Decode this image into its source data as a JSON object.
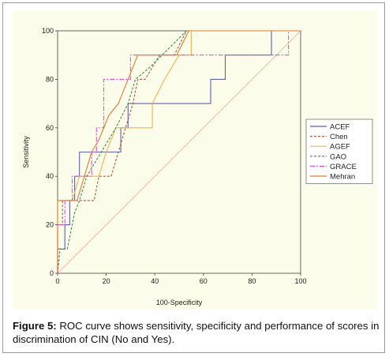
{
  "figure": {
    "caption_label": "Figure 5:",
    "caption_text": " ROC curve shows sensitivity, specificity and performance of scores in discrimination of CIN (No and Yes)."
  },
  "colors": {
    "panel_bg": "#fbfce9",
    "diagonal": "#f4a2a2",
    "axis": "#444444"
  },
  "chart_data": {
    "type": "line",
    "title": "",
    "xlabel": "100-Specificity",
    "ylabel": "Sensitivity",
    "xlim": [
      0,
      100
    ],
    "ylim": [
      0,
      100
    ],
    "xticks": [
      "0",
      "20",
      "40",
      "60",
      "80",
      "100"
    ],
    "yticks": [
      "0",
      "20",
      "40",
      "60",
      "80",
      "100"
    ],
    "grid": false,
    "legend_position": "right",
    "reference_line": {
      "from": [
        0,
        0
      ],
      "to": [
        100,
        100
      ]
    },
    "series": [
      {
        "name": "ACEF",
        "color": "#5f62b0",
        "dash": "solid",
        "points": [
          [
            0,
            0
          ],
          [
            0,
            10
          ],
          [
            3,
            10
          ],
          [
            3,
            20
          ],
          [
            5,
            20
          ],
          [
            5,
            30
          ],
          [
            7,
            30
          ],
          [
            7,
            40
          ],
          [
            9,
            40
          ],
          [
            9,
            50
          ],
          [
            26,
            50
          ],
          [
            26,
            60
          ],
          [
            29,
            60
          ],
          [
            29,
            70
          ],
          [
            63,
            70
          ],
          [
            63,
            80
          ],
          [
            69,
            80
          ],
          [
            69,
            90
          ],
          [
            88,
            90
          ],
          [
            88,
            100
          ],
          [
            100,
            100
          ]
        ]
      },
      {
        "name": "Chen",
        "color": "#a85a3c",
        "dash": "3,2",
        "points": [
          [
            0,
            0
          ],
          [
            0,
            20
          ],
          [
            2,
            20
          ],
          [
            2,
            30
          ],
          [
            7,
            30
          ],
          [
            10,
            30
          ],
          [
            15,
            30
          ],
          [
            17,
            40
          ],
          [
            22,
            40
          ],
          [
            25,
            50
          ],
          [
            28,
            60
          ],
          [
            31,
            70
          ],
          [
            33,
            80
          ],
          [
            36,
            80
          ],
          [
            42,
            90
          ],
          [
            48,
            90
          ],
          [
            53,
            100
          ],
          [
            100,
            100
          ]
        ]
      },
      {
        "name": "AGEF",
        "color": "#f2b24a",
        "dash": "solid",
        "points": [
          [
            0,
            0
          ],
          [
            0,
            30
          ],
          [
            6,
            30
          ],
          [
            9,
            40
          ],
          [
            14,
            40
          ],
          [
            17,
            40
          ],
          [
            20,
            50
          ],
          [
            24,
            60
          ],
          [
            39,
            60
          ],
          [
            39,
            70
          ],
          [
            44,
            80
          ],
          [
            50,
            90
          ],
          [
            55,
            90
          ],
          [
            55,
            100
          ],
          [
            98,
            100
          ],
          [
            100,
            100
          ]
        ]
      },
      {
        "name": "GAO",
        "color": "#3f8a4a",
        "dash": "3,2",
        "points": [
          [
            0,
            0
          ],
          [
            1,
            10
          ],
          [
            4,
            10
          ],
          [
            7,
            25
          ],
          [
            9,
            30
          ],
          [
            12,
            40
          ],
          [
            18,
            50
          ],
          [
            24,
            60
          ],
          [
            29,
            70
          ],
          [
            32,
            80
          ],
          [
            38,
            85
          ],
          [
            43,
            90
          ],
          [
            48,
            95
          ],
          [
            53,
            100
          ],
          [
            100,
            100
          ]
        ]
      },
      {
        "name": "GRACE",
        "color": "#e052e0",
        "dash": "6,2,2,2",
        "points": [
          [
            0,
            0
          ],
          [
            0,
            20
          ],
          [
            3,
            20
          ],
          [
            3,
            30
          ],
          [
            6,
            30
          ],
          [
            6,
            40
          ],
          [
            14,
            40
          ],
          [
            14,
            50
          ],
          [
            16,
            50
          ],
          [
            16,
            60
          ],
          [
            19,
            60
          ],
          [
            19,
            80
          ],
          [
            30,
            80
          ],
          [
            30,
            90
          ],
          [
            70,
            90
          ],
          [
            70,
            90
          ],
          [
            95,
            90
          ],
          [
            95,
            100
          ],
          [
            100,
            100
          ]
        ]
      },
      {
        "name": "Mehran",
        "color": "#e8782e",
        "dash": "solid",
        "points": [
          [
            0,
            0
          ],
          [
            0,
            30
          ],
          [
            8,
            30
          ],
          [
            11,
            40
          ],
          [
            14,
            50
          ],
          [
            17,
            55
          ],
          [
            21,
            65
          ],
          [
            25,
            70
          ],
          [
            29,
            80
          ],
          [
            33,
            90
          ],
          [
            49,
            90
          ],
          [
            54,
            100
          ],
          [
            100,
            100
          ]
        ]
      }
    ]
  }
}
